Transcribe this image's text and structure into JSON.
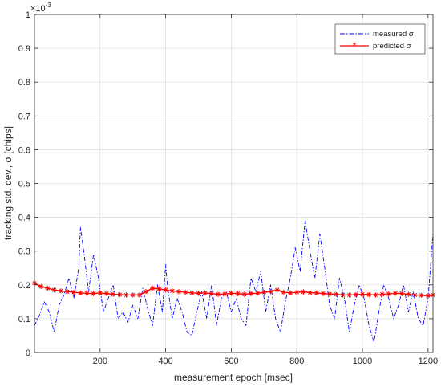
{
  "chart_data": {
    "type": "line",
    "title": "",
    "xlabel": "measurement epoch [msec]",
    "ylabel": "tracking std. dev., σ [chips]",
    "y_exponent_label": "×10",
    "y_exponent_value": "-3",
    "xlim": [
      0,
      1215
    ],
    "ylim": [
      0,
      1.0
    ],
    "x_ticks": [
      200,
      400,
      600,
      800,
      1000,
      1200
    ],
    "x_tick_labels": [
      "200",
      "400",
      "600",
      "800",
      "1000",
      "1200"
    ],
    "y_ticks": [
      0,
      0.1,
      0.2,
      0.3,
      0.4,
      0.5,
      0.6,
      0.7,
      0.8,
      0.9,
      1
    ],
    "y_tick_labels": [
      "0",
      "0.1",
      "0.2",
      "0.3",
      "0.4",
      "0.5",
      "0.6",
      "0.7",
      "0.8",
      "0.9",
      "1"
    ],
    "grid": true,
    "legend_position": "top-right",
    "series": [
      {
        "name": "measured σ",
        "color": "#0000ff",
        "style": "dash-dot",
        "x": [
          0,
          15,
          30,
          45,
          60,
          75,
          90,
          105,
          120,
          135,
          140,
          150,
          165,
          180,
          195,
          210,
          225,
          240,
          255,
          270,
          285,
          300,
          315,
          330,
          345,
          360,
          375,
          390,
          400,
          405,
          420,
          435,
          450,
          465,
          480,
          495,
          510,
          525,
          540,
          555,
          570,
          585,
          600,
          615,
          630,
          645,
          660,
          675,
          690,
          705,
          720,
          735,
          750,
          765,
          780,
          795,
          810,
          825,
          840,
          855,
          870,
          885,
          900,
          915,
          930,
          945,
          960,
          975,
          990,
          1005,
          1020,
          1035,
          1050,
          1065,
          1080,
          1095,
          1110,
          1125,
          1140,
          1155,
          1170,
          1185,
          1200,
          1215
        ],
        "y": [
          0.08,
          0.11,
          0.15,
          0.12,
          0.06,
          0.14,
          0.17,
          0.22,
          0.16,
          0.25,
          0.37,
          0.3,
          0.18,
          0.29,
          0.22,
          0.12,
          0.16,
          0.2,
          0.1,
          0.12,
          0.09,
          0.14,
          0.1,
          0.19,
          0.13,
          0.08,
          0.2,
          0.12,
          0.26,
          0.2,
          0.1,
          0.16,
          0.12,
          0.06,
          0.05,
          0.12,
          0.18,
          0.1,
          0.2,
          0.08,
          0.16,
          0.18,
          0.12,
          0.16,
          0.1,
          0.08,
          0.22,
          0.18,
          0.24,
          0.12,
          0.2,
          0.1,
          0.06,
          0.15,
          0.22,
          0.31,
          0.24,
          0.39,
          0.3,
          0.22,
          0.35,
          0.25,
          0.14,
          0.1,
          0.22,
          0.16,
          0.06,
          0.14,
          0.2,
          0.16,
          0.08,
          0.03,
          0.12,
          0.2,
          0.16,
          0.1,
          0.14,
          0.2,
          0.12,
          0.18,
          0.1,
          0.08,
          0.16,
          0.35
        ]
      },
      {
        "name": "predicted σ",
        "color": "#ff0000",
        "style": "solid-star",
        "x": [
          0,
          20,
          40,
          60,
          80,
          100,
          120,
          140,
          160,
          180,
          200,
          220,
          240,
          260,
          280,
          300,
          320,
          340,
          360,
          380,
          400,
          420,
          440,
          460,
          480,
          500,
          520,
          540,
          560,
          580,
          600,
          620,
          640,
          660,
          680,
          700,
          720,
          740,
          760,
          780,
          800,
          820,
          840,
          860,
          880,
          900,
          920,
          940,
          960,
          980,
          1000,
          1020,
          1040,
          1060,
          1080,
          1100,
          1120,
          1140,
          1160,
          1180,
          1200,
          1215
        ],
        "y": [
          0.205,
          0.195,
          0.19,
          0.185,
          0.182,
          0.18,
          0.178,
          0.176,
          0.175,
          0.174,
          0.176,
          0.174,
          0.172,
          0.171,
          0.17,
          0.17,
          0.17,
          0.18,
          0.19,
          0.188,
          0.185,
          0.182,
          0.18,
          0.178,
          0.176,
          0.175,
          0.176,
          0.174,
          0.172,
          0.173,
          0.175,
          0.174,
          0.172,
          0.174,
          0.175,
          0.178,
          0.18,
          0.185,
          0.178,
          0.176,
          0.178,
          0.179,
          0.177,
          0.176,
          0.174,
          0.173,
          0.172,
          0.17,
          0.17,
          0.171,
          0.172,
          0.171,
          0.17,
          0.172,
          0.173,
          0.175,
          0.174,
          0.172,
          0.17,
          0.169,
          0.168,
          0.17
        ]
      }
    ]
  }
}
